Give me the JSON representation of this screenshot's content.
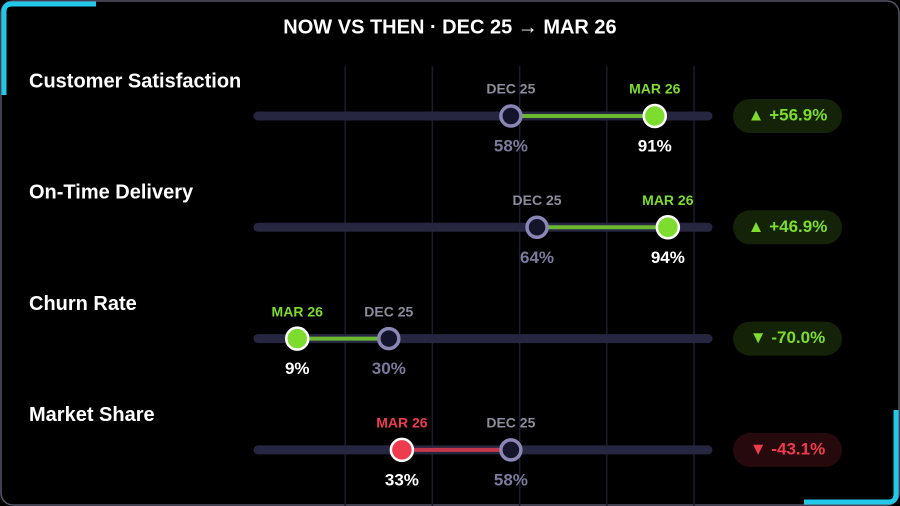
{
  "chart_data": {
    "type": "dumbbell",
    "title": "NOW VS THEN · DEC 25 → MAR 26",
    "categories": [
      "Customer Satisfaction",
      "On-Time Delivery",
      "Churn Rate",
      "Market Share"
    ],
    "series": [
      {
        "name": "DEC 25",
        "color": "#8a86b5",
        "values": [
          58,
          64,
          30,
          58
        ],
        "value_labels": [
          "58%",
          "64%",
          "30%",
          "58%"
        ]
      },
      {
        "name": "MAR 26",
        "color": "#ffffff",
        "values": [
          91,
          94,
          9,
          33
        ],
        "value_labels": [
          "91%",
          "94%",
          "9%",
          "33%"
        ]
      }
    ],
    "changes": {
      "values": [
        56.9,
        46.9,
        -70.0,
        -43.1
      ],
      "value_labels": [
        "▲ +56.9%",
        "▲ +46.9%",
        "▼ -70.0%",
        "▼ -43.1%"
      ]
    },
    "colors": [
      "#7ddc2e",
      "#7ddc2e",
      "#7ddc2e",
      "#ee3b4d"
    ],
    "xlim": [
      0,
      100
    ],
    "xticks": [
      20,
      40,
      60,
      80,
      100
    ],
    "grid": true
  }
}
